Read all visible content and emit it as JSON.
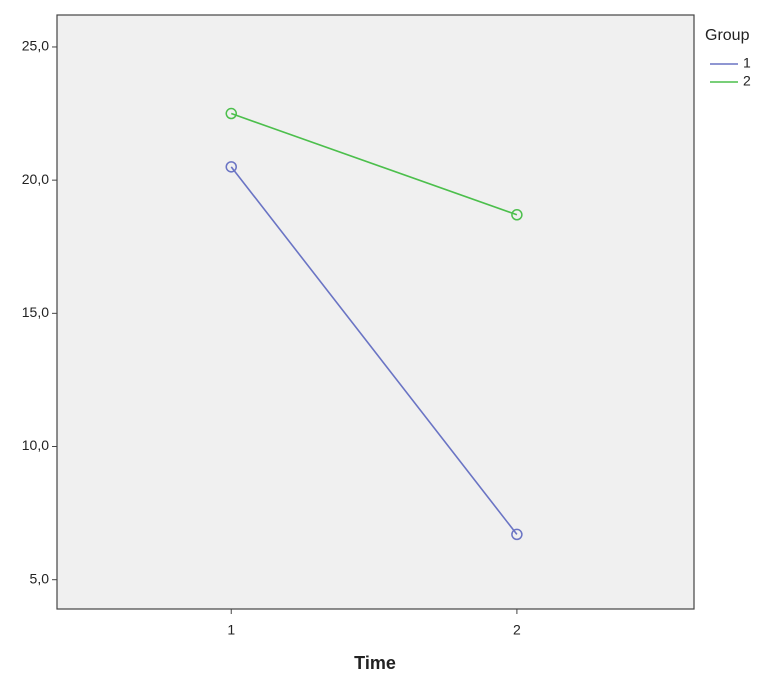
{
  "chart_data": {
    "type": "line",
    "x_label": "Time",
    "legend_title": "Group",
    "x": [
      1,
      2
    ],
    "xlim": [
      0.39,
      2.62
    ],
    "xticks": [
      1,
      2
    ],
    "ylim": [
      3.9,
      26.2
    ],
    "yticks": [
      {
        "value": 5,
        "label": "5,0"
      },
      {
        "value": 10,
        "label": "10,0"
      },
      {
        "value": 15,
        "label": "15,0"
      },
      {
        "value": 20,
        "label": "20,0"
      },
      {
        "value": 25,
        "label": "25,0"
      }
    ],
    "grid": false,
    "legend": "right",
    "series": [
      {
        "name": "1",
        "color": "#6a74c4",
        "values": [
          20.5,
          6.7
        ]
      },
      {
        "name": "2",
        "color": "#4cbf4c",
        "values": [
          22.5,
          18.7
        ]
      }
    ]
  }
}
